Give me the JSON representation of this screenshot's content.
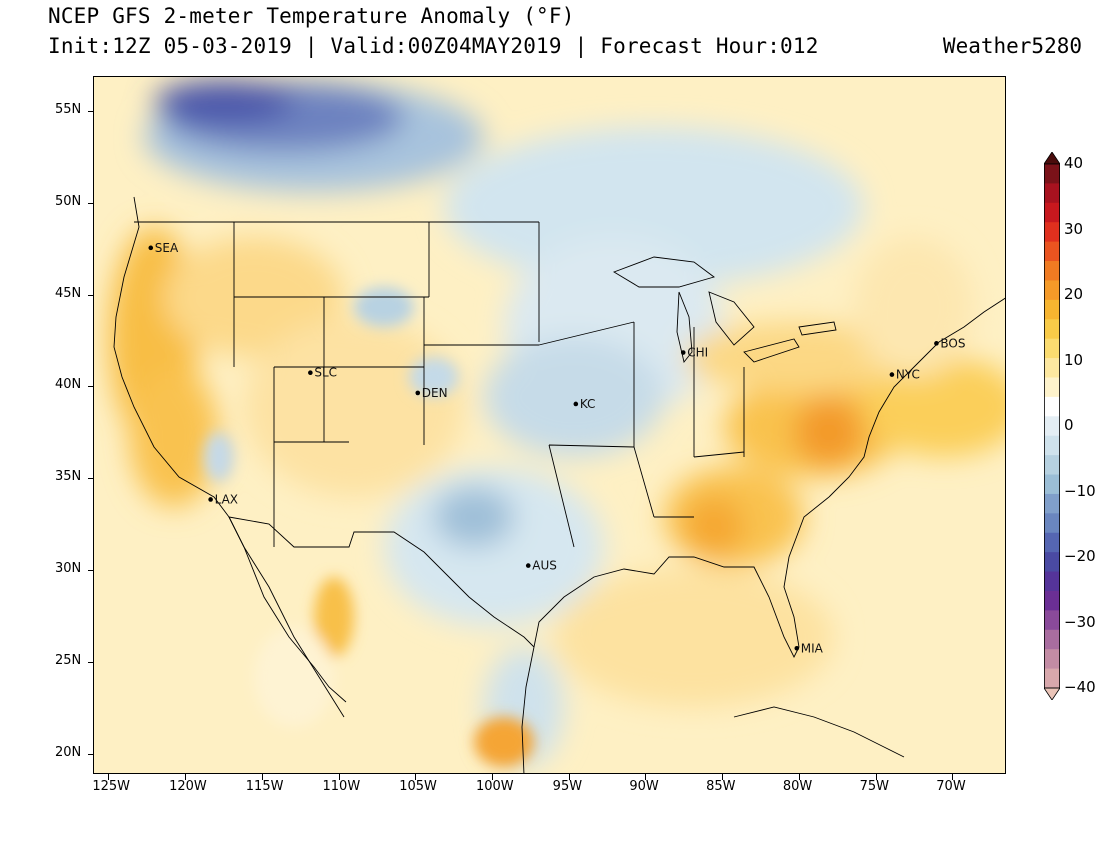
{
  "header": {
    "title": "NCEP GFS 2-meter Temperature Anomaly (°F)",
    "subtitle": "Init:12Z 05-03-2019 | Valid:00Z04MAY2019 | Forecast Hour:012",
    "brand": "Weather5280"
  },
  "map": {
    "lat_labels": [
      "55N",
      "50N",
      "45N",
      "40N",
      "35N",
      "30N",
      "25N",
      "20N"
    ],
    "lon_labels": [
      "125W",
      "120W",
      "115W",
      "110W",
      "105W",
      "100W",
      "95W",
      "90W",
      "85W",
      "80W",
      "75W",
      "70W"
    ],
    "cities": [
      {
        "name": "SEA",
        "lon": -122.3,
        "lat": 47.6
      },
      {
        "name": "SLC",
        "lon": -111.9,
        "lat": 40.8
      },
      {
        "name": "DEN",
        "lon": -104.9,
        "lat": 39.7
      },
      {
        "name": "LAX",
        "lon": -118.4,
        "lat": 33.9
      },
      {
        "name": "KC",
        "lon": -94.6,
        "lat": 39.1
      },
      {
        "name": "CHI",
        "lon": -87.6,
        "lat": 41.9
      },
      {
        "name": "AUS",
        "lon": -97.7,
        "lat": 30.3
      },
      {
        "name": "NYC",
        "lon": -74.0,
        "lat": 40.7
      },
      {
        "name": "BOS",
        "lon": -71.1,
        "lat": 42.4
      },
      {
        "name": "MIA",
        "lon": -80.2,
        "lat": 25.8
      }
    ]
  },
  "colorbar": {
    "labels": [
      "40",
      "30",
      "20",
      "10",
      "0",
      "−10",
      "−20",
      "−30",
      "−40"
    ],
    "colors": [
      "#4a0c0c",
      "#7a1219",
      "#a8121f",
      "#c8181e",
      "#e0301e",
      "#ea5420",
      "#f07b22",
      "#f59a28",
      "#f7b530",
      "#f9cb48",
      "#fbdc70",
      "#fde8a0",
      "#fef3cc",
      "#ffffff",
      "#e4eef4",
      "#cfe2ec",
      "#b6d1e0",
      "#9bbed6",
      "#809fca",
      "#6a86bf",
      "#5566b2",
      "#4a4aa3",
      "#55349a",
      "#6b2f95",
      "#8a4a9a",
      "#a96d9f",
      "#c38ca4",
      "#d8a8ac",
      "#eac4b8"
    ]
  }
}
